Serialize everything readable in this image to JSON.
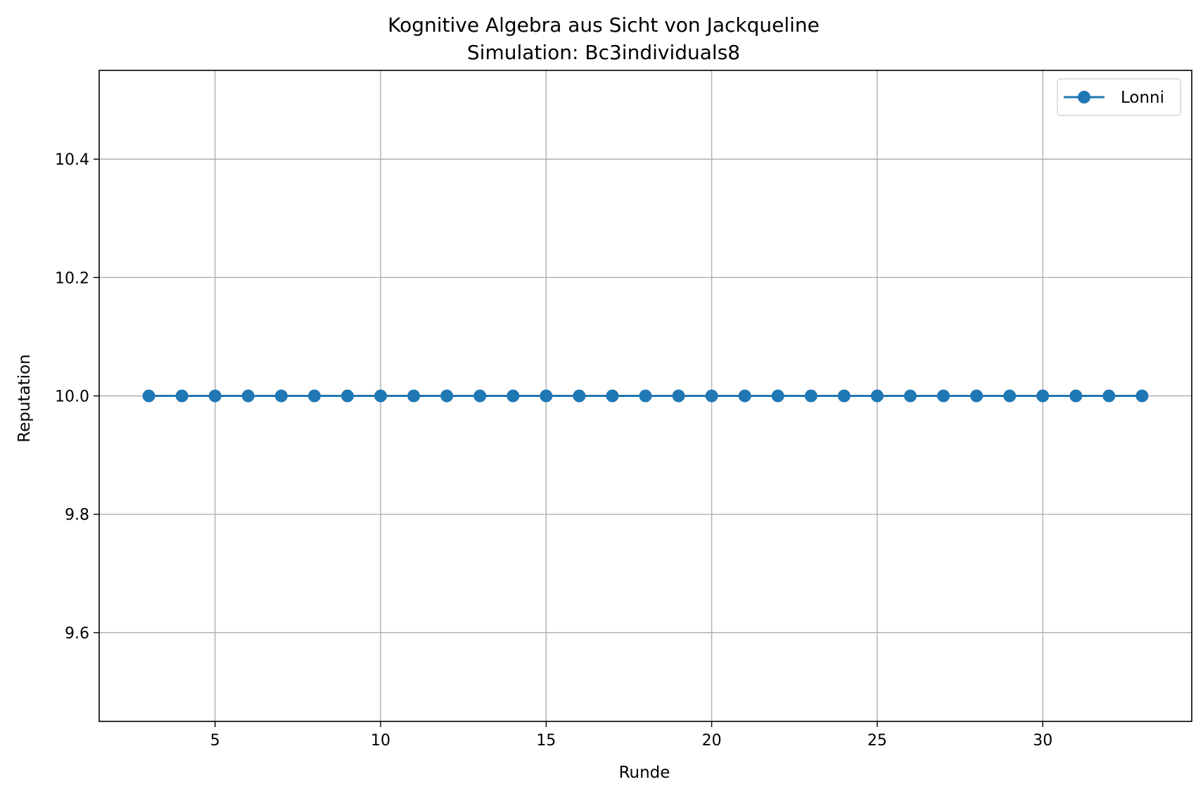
{
  "chart_data": {
    "type": "line",
    "title": "Kognitive Algebra aus Sicht von Jackqueline",
    "subtitle": "Simulation: Bc3individuals8",
    "xlabel": "Runde",
    "ylabel": "Reputation",
    "xlim": [
      1.5,
      34.5
    ],
    "ylim": [
      9.45,
      10.55
    ],
    "xticks": [
      5,
      10,
      15,
      20,
      25,
      30
    ],
    "xtick_labels": [
      "5",
      "10",
      "15",
      "20",
      "25",
      "30"
    ],
    "yticks": [
      9.6,
      9.8,
      10.0,
      10.2,
      10.4
    ],
    "ytick_labels": [
      "9.6",
      "9.8",
      "10.0",
      "10.2",
      "10.4"
    ],
    "grid": true,
    "legend_position": "top-right",
    "series": [
      {
        "name": "Lonni",
        "color": "#1f77b4",
        "marker": "circle",
        "x": [
          3,
          4,
          5,
          6,
          7,
          8,
          9,
          10,
          11,
          12,
          13,
          14,
          15,
          16,
          17,
          18,
          19,
          20,
          21,
          22,
          23,
          24,
          25,
          26,
          27,
          28,
          29,
          30,
          31,
          32,
          33
        ],
        "y": [
          10,
          10,
          10,
          10,
          10,
          10,
          10,
          10,
          10,
          10,
          10,
          10,
          10,
          10,
          10,
          10,
          10,
          10,
          10,
          10,
          10,
          10,
          10,
          10,
          10,
          10,
          10,
          10,
          10,
          10,
          10
        ]
      }
    ]
  }
}
